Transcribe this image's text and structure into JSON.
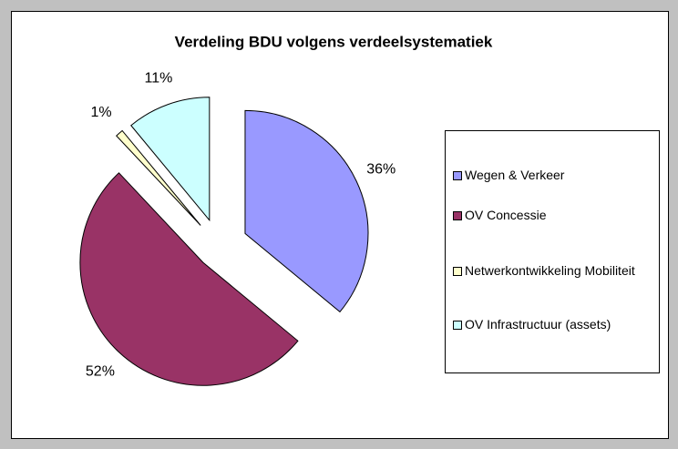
{
  "chart_data": {
    "type": "pie",
    "title": "Verdeling BDU volgens verdeelsystematiek",
    "categories": [
      "Wegen & Verkeer",
      "OV Concessie",
      "Netwerkontwikkeling Mobiliteit",
      "OV Infrastructuur (assets)"
    ],
    "values": [
      36,
      52,
      1,
      11
    ],
    "value_labels": [
      "36%",
      "52%",
      "1%",
      "11%"
    ],
    "colors": [
      "#9999ff",
      "#993366",
      "#ffffcc",
      "#ccffff"
    ],
    "legend": "right"
  }
}
